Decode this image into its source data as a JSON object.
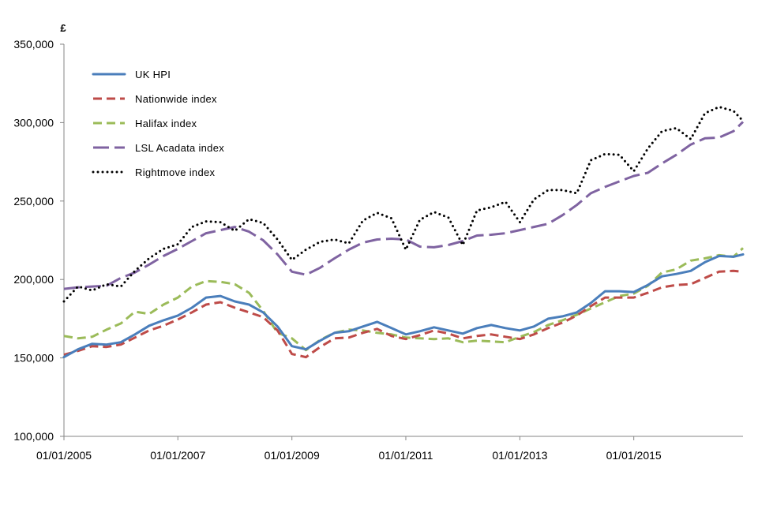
{
  "chart_data": {
    "type": "line",
    "title": "",
    "xlabel": "",
    "ylabel": "£",
    "ylim": [
      100000,
      350000
    ],
    "xlim": [
      "2005-01-01",
      "2016-12-01"
    ],
    "y_ticks": [
      100000,
      150000,
      200000,
      250000,
      300000,
      350000
    ],
    "y_tick_labels": [
      "100,000",
      "150,000",
      "200,000",
      "250,000",
      "300,000",
      "350,000"
    ],
    "x_ticks": [
      "2005-01-01",
      "2007-01-01",
      "2009-01-01",
      "2011-01-01",
      "2013-01-01",
      "2015-01-01"
    ],
    "x_tick_labels": [
      "01/01/2005",
      "01/01/2007",
      "01/01/2009",
      "01/01/2011",
      "01/01/2013",
      "01/01/2015"
    ],
    "grid": false,
    "legend_position": "top-left",
    "series": [
      {
        "name": "UK HPI",
        "color": "#4a7ebb",
        "style": "solid",
        "points": [
          [
            "2005-01-01",
            150500
          ],
          [
            "2005-04-01",
            155500
          ],
          [
            "2005-07-01",
            159000
          ],
          [
            "2005-10-01",
            158500
          ],
          [
            "2006-01-01",
            160000
          ],
          [
            "2006-04-01",
            165000
          ],
          [
            "2006-07-01",
            170500
          ],
          [
            "2006-10-01",
            174000
          ],
          [
            "2007-01-01",
            177000
          ],
          [
            "2007-04-01",
            182000
          ],
          [
            "2007-07-01",
            188500
          ],
          [
            "2007-10-01",
            189500
          ],
          [
            "2008-01-01",
            186000
          ],
          [
            "2008-04-01",
            184000
          ],
          [
            "2008-07-01",
            179000
          ],
          [
            "2008-10-01",
            170000
          ],
          [
            "2009-01-01",
            157500
          ],
          [
            "2009-04-01",
            155500
          ],
          [
            "2009-07-01",
            161000
          ],
          [
            "2009-10-01",
            166000
          ],
          [
            "2010-01-01",
            167000
          ],
          [
            "2010-04-01",
            170000
          ],
          [
            "2010-07-01",
            173000
          ],
          [
            "2010-10-01",
            169000
          ],
          [
            "2011-01-01",
            165000
          ],
          [
            "2011-04-01",
            167000
          ],
          [
            "2011-07-01",
            169500
          ],
          [
            "2011-10-01",
            167500
          ],
          [
            "2012-01-01",
            165500
          ],
          [
            "2012-04-01",
            169000
          ],
          [
            "2012-07-01",
            171000
          ],
          [
            "2012-10-01",
            169000
          ],
          [
            "2013-01-01",
            167500
          ],
          [
            "2013-04-01",
            170000
          ],
          [
            "2013-07-01",
            175000
          ],
          [
            "2013-10-01",
            176500
          ],
          [
            "2014-01-01",
            179000
          ],
          [
            "2014-04-01",
            185000
          ],
          [
            "2014-07-01",
            192500
          ],
          [
            "2014-10-01",
            192500
          ],
          [
            "2015-01-01",
            192000
          ],
          [
            "2015-04-01",
            196500
          ],
          [
            "2015-07-01",
            202000
          ],
          [
            "2015-10-01",
            203500
          ],
          [
            "2016-01-01",
            205500
          ],
          [
            "2016-04-01",
            211000
          ],
          [
            "2016-07-01",
            215000
          ],
          [
            "2016-10-01",
            214500
          ],
          [
            "2016-12-01",
            216000
          ]
        ]
      },
      {
        "name": "Nationwide index",
        "color": "#be4b48",
        "style": "dashed",
        "points": [
          [
            "2005-01-01",
            152000
          ],
          [
            "2005-04-01",
            154500
          ],
          [
            "2005-07-01",
            157500
          ],
          [
            "2005-10-01",
            157000
          ],
          [
            "2006-01-01",
            158500
          ],
          [
            "2006-04-01",
            163000
          ],
          [
            "2006-07-01",
            167500
          ],
          [
            "2006-10-01",
            170500
          ],
          [
            "2007-01-01",
            174500
          ],
          [
            "2007-04-01",
            179000
          ],
          [
            "2007-07-01",
            184000
          ],
          [
            "2007-10-01",
            185500
          ],
          [
            "2008-01-01",
            182000
          ],
          [
            "2008-04-01",
            179000
          ],
          [
            "2008-07-01",
            176000
          ],
          [
            "2008-10-01",
            167500
          ],
          [
            "2009-01-01",
            152500
          ],
          [
            "2009-04-01",
            150500
          ],
          [
            "2009-07-01",
            157000
          ],
          [
            "2009-10-01",
            162500
          ],
          [
            "2010-01-01",
            163000
          ],
          [
            "2010-04-01",
            166000
          ],
          [
            "2010-07-01",
            168500
          ],
          [
            "2010-10-01",
            164000
          ],
          [
            "2011-01-01",
            162000
          ],
          [
            "2011-04-01",
            164500
          ],
          [
            "2011-07-01",
            167500
          ],
          [
            "2011-10-01",
            165500
          ],
          [
            "2012-01-01",
            162500
          ],
          [
            "2012-04-01",
            164000
          ],
          [
            "2012-07-01",
            165000
          ],
          [
            "2012-10-01",
            163500
          ],
          [
            "2013-01-01",
            162000
          ],
          [
            "2013-04-01",
            165000
          ],
          [
            "2013-07-01",
            169000
          ],
          [
            "2013-10-01",
            172500
          ],
          [
            "2014-01-01",
            177000
          ],
          [
            "2014-04-01",
            183000
          ],
          [
            "2014-07-01",
            188500
          ],
          [
            "2014-10-01",
            188500
          ],
          [
            "2015-01-01",
            188500
          ],
          [
            "2015-04-01",
            191500
          ],
          [
            "2015-07-01",
            195000
          ],
          [
            "2015-10-01",
            196500
          ],
          [
            "2016-01-01",
            197000
          ],
          [
            "2016-04-01",
            201000
          ],
          [
            "2016-07-01",
            205000
          ],
          [
            "2016-10-01",
            205500
          ],
          [
            "2016-12-01",
            205000
          ]
        ]
      },
      {
        "name": "Halifax index",
        "color": "#9bbb59",
        "style": "dashed",
        "points": [
          [
            "2005-01-01",
            164000
          ],
          [
            "2005-04-01",
            162500
          ],
          [
            "2005-07-01",
            163500
          ],
          [
            "2005-10-01",
            168000
          ],
          [
            "2006-01-01",
            172000
          ],
          [
            "2006-04-01",
            179500
          ],
          [
            "2006-07-01",
            178000
          ],
          [
            "2006-10-01",
            184000
          ],
          [
            "2007-01-01",
            188500
          ],
          [
            "2007-04-01",
            195500
          ],
          [
            "2007-07-01",
            199000
          ],
          [
            "2007-10-01",
            198500
          ],
          [
            "2008-01-01",
            197000
          ],
          [
            "2008-04-01",
            191500
          ],
          [
            "2008-07-01",
            180000
          ],
          [
            "2008-10-01",
            166000
          ],
          [
            "2009-01-01",
            162500
          ],
          [
            "2009-04-01",
            155000
          ],
          [
            "2009-07-01",
            161500
          ],
          [
            "2009-10-01",
            166000
          ],
          [
            "2010-01-01",
            168000
          ],
          [
            "2010-04-01",
            167500
          ],
          [
            "2010-07-01",
            166000
          ],
          [
            "2010-10-01",
            165000
          ],
          [
            "2011-01-01",
            163000
          ],
          [
            "2011-04-01",
            162500
          ],
          [
            "2011-07-01",
            162000
          ],
          [
            "2011-10-01",
            162500
          ],
          [
            "2012-01-01",
            160000
          ],
          [
            "2012-04-01",
            161000
          ],
          [
            "2012-07-01",
            160500
          ],
          [
            "2012-10-01",
            160000
          ],
          [
            "2013-01-01",
            163500
          ],
          [
            "2013-04-01",
            166500
          ],
          [
            "2013-07-01",
            171000
          ],
          [
            "2013-10-01",
            174000
          ],
          [
            "2014-01-01",
            177500
          ],
          [
            "2014-04-01",
            181500
          ],
          [
            "2014-07-01",
            185500
          ],
          [
            "2014-10-01",
            189500
          ],
          [
            "2015-01-01",
            191000
          ],
          [
            "2015-04-01",
            196000
          ],
          [
            "2015-07-01",
            204500
          ],
          [
            "2015-10-01",
            206500
          ],
          [
            "2016-01-01",
            212000
          ],
          [
            "2016-04-01",
            213500
          ],
          [
            "2016-07-01",
            215500
          ],
          [
            "2016-10-01",
            214500
          ],
          [
            "2016-12-01",
            220000
          ]
        ]
      },
      {
        "name": "LSL Acadata index",
        "color": "#7f63a1",
        "style": "long-dash",
        "points": [
          [
            "2005-01-01",
            194000
          ],
          [
            "2005-04-01",
            195000
          ],
          [
            "2005-07-01",
            195500
          ],
          [
            "2005-10-01",
            196000
          ],
          [
            "2006-01-01",
            201000
          ],
          [
            "2006-04-01",
            204500
          ],
          [
            "2006-07-01",
            209500
          ],
          [
            "2006-10-01",
            215000
          ],
          [
            "2007-01-01",
            219500
          ],
          [
            "2007-04-01",
            224500
          ],
          [
            "2007-07-01",
            229500
          ],
          [
            "2007-10-01",
            231500
          ],
          [
            "2008-01-01",
            233500
          ],
          [
            "2008-04-01",
            230500
          ],
          [
            "2008-07-01",
            225000
          ],
          [
            "2008-10-01",
            216000
          ],
          [
            "2009-01-01",
            205000
          ],
          [
            "2009-04-01",
            203000
          ],
          [
            "2009-07-01",
            207500
          ],
          [
            "2009-10-01",
            213500
          ],
          [
            "2010-01-01",
            219000
          ],
          [
            "2010-04-01",
            223500
          ],
          [
            "2010-07-01",
            225500
          ],
          [
            "2010-10-01",
            226000
          ],
          [
            "2011-01-01",
            225500
          ],
          [
            "2011-04-01",
            221000
          ],
          [
            "2011-07-01",
            220500
          ],
          [
            "2011-10-01",
            222000
          ],
          [
            "2012-01-01",
            224500
          ],
          [
            "2012-04-01",
            228000
          ],
          [
            "2012-07-01",
            228500
          ],
          [
            "2012-10-01",
            229500
          ],
          [
            "2013-01-01",
            231500
          ],
          [
            "2013-04-01",
            233500
          ],
          [
            "2013-07-01",
            235500
          ],
          [
            "2013-10-01",
            241000
          ],
          [
            "2014-01-01",
            247500
          ],
          [
            "2014-04-01",
            255000
          ],
          [
            "2014-07-01",
            259000
          ],
          [
            "2014-10-01",
            262500
          ],
          [
            "2015-01-01",
            266000
          ],
          [
            "2015-04-01",
            268000
          ],
          [
            "2015-07-01",
            274000
          ],
          [
            "2015-10-01",
            279500
          ],
          [
            "2016-01-01",
            286000
          ],
          [
            "2016-04-01",
            290000
          ],
          [
            "2016-07-01",
            290500
          ],
          [
            "2016-10-01",
            294500
          ],
          [
            "2016-12-01",
            300500
          ]
        ]
      },
      {
        "name": "Rightmove index",
        "color": "#000000",
        "style": "dotted",
        "points": [
          [
            "2005-01-01",
            186000
          ],
          [
            "2005-04-01",
            195500
          ],
          [
            "2005-07-01",
            193000
          ],
          [
            "2005-10-01",
            197000
          ],
          [
            "2006-01-01",
            195500
          ],
          [
            "2006-04-01",
            205500
          ],
          [
            "2006-07-01",
            213500
          ],
          [
            "2006-10-01",
            219500
          ],
          [
            "2007-01-01",
            222500
          ],
          [
            "2007-04-01",
            233500
          ],
          [
            "2007-07-01",
            237000
          ],
          [
            "2007-10-01",
            236500
          ],
          [
            "2008-01-01",
            231000
          ],
          [
            "2008-04-01",
            238500
          ],
          [
            "2008-07-01",
            236000
          ],
          [
            "2008-10-01",
            225500
          ],
          [
            "2009-01-01",
            212500
          ],
          [
            "2009-04-01",
            219000
          ],
          [
            "2009-07-01",
            224000
          ],
          [
            "2009-10-01",
            225500
          ],
          [
            "2010-01-01",
            223000
          ],
          [
            "2010-04-01",
            237500
          ],
          [
            "2010-07-01",
            242500
          ],
          [
            "2010-10-01",
            239000
          ],
          [
            "2011-01-01",
            219000
          ],
          [
            "2011-04-01",
            238000
          ],
          [
            "2011-07-01",
            243000
          ],
          [
            "2011-10-01",
            239500
          ],
          [
            "2012-01-01",
            222000
          ],
          [
            "2012-04-01",
            244000
          ],
          [
            "2012-07-01",
            246000
          ],
          [
            "2012-10-01",
            249500
          ],
          [
            "2013-01-01",
            236500
          ],
          [
            "2013-04-01",
            251000
          ],
          [
            "2013-07-01",
            257000
          ],
          [
            "2013-10-01",
            257000
          ],
          [
            "2014-01-01",
            255000
          ],
          [
            "2014-04-01",
            276000
          ],
          [
            "2014-07-01",
            280000
          ],
          [
            "2014-10-01",
            279500
          ],
          [
            "2015-01-01",
            269000
          ],
          [
            "2015-04-01",
            283500
          ],
          [
            "2015-07-01",
            294500
          ],
          [
            "2015-10-01",
            296500
          ],
          [
            "2016-01-01",
            289500
          ],
          [
            "2016-04-01",
            306000
          ],
          [
            "2016-07-01",
            310000
          ],
          [
            "2016-10-01",
            307500
          ],
          [
            "2016-12-01",
            301000
          ]
        ]
      }
    ]
  }
}
